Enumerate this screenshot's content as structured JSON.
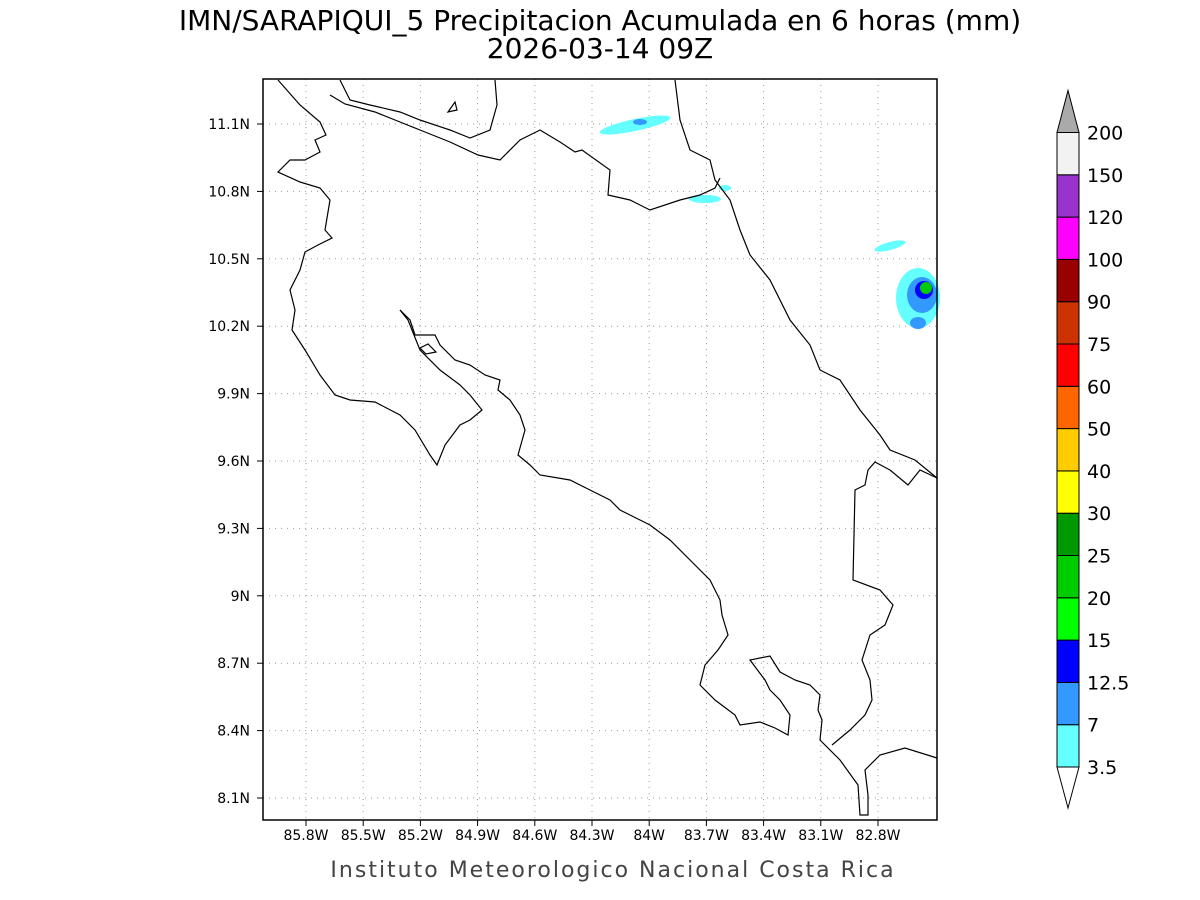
{
  "title": "IMN/SARAPIQUI_5 Precipitacion Acumulada en 6 horas (mm)",
  "subtitle": "2026-03-14 09Z",
  "lat_labels": [
    "11.1N",
    "10.8N",
    "10.5N",
    "10.2N",
    "9.9N",
    "9.6N",
    "9.3N",
    "9N",
    "8.7N",
    "8.4N",
    "8.1N"
  ],
  "lon_labels": [
    "85.8W",
    "85.5W",
    "85.2W",
    "84.9W",
    "84.6W",
    "84.3W",
    "84W",
    "83.7W",
    "83.4W",
    "83.1W",
    "82.8W"
  ],
  "colorbar": {
    "levels": [
      3.5,
      7,
      12.5,
      15,
      20,
      25,
      30,
      40,
      50,
      60,
      75,
      90,
      100,
      120,
      150,
      200
    ],
    "colors": [
      "#ffffff",
      "#66ffff",
      "#3399ff",
      "#0000ff",
      "#00ff00",
      "#00cc00",
      "#009900",
      "#ffff00",
      "#ffcc00",
      "#ff6600",
      "#ff0000",
      "#cc3300",
      "#990000",
      "#ff00ff",
      "#9933cc",
      "#f2f2f2",
      "#aaaaaa"
    ]
  },
  "footer": "Instituto Meteorologico Nacional Costa Rica"
}
